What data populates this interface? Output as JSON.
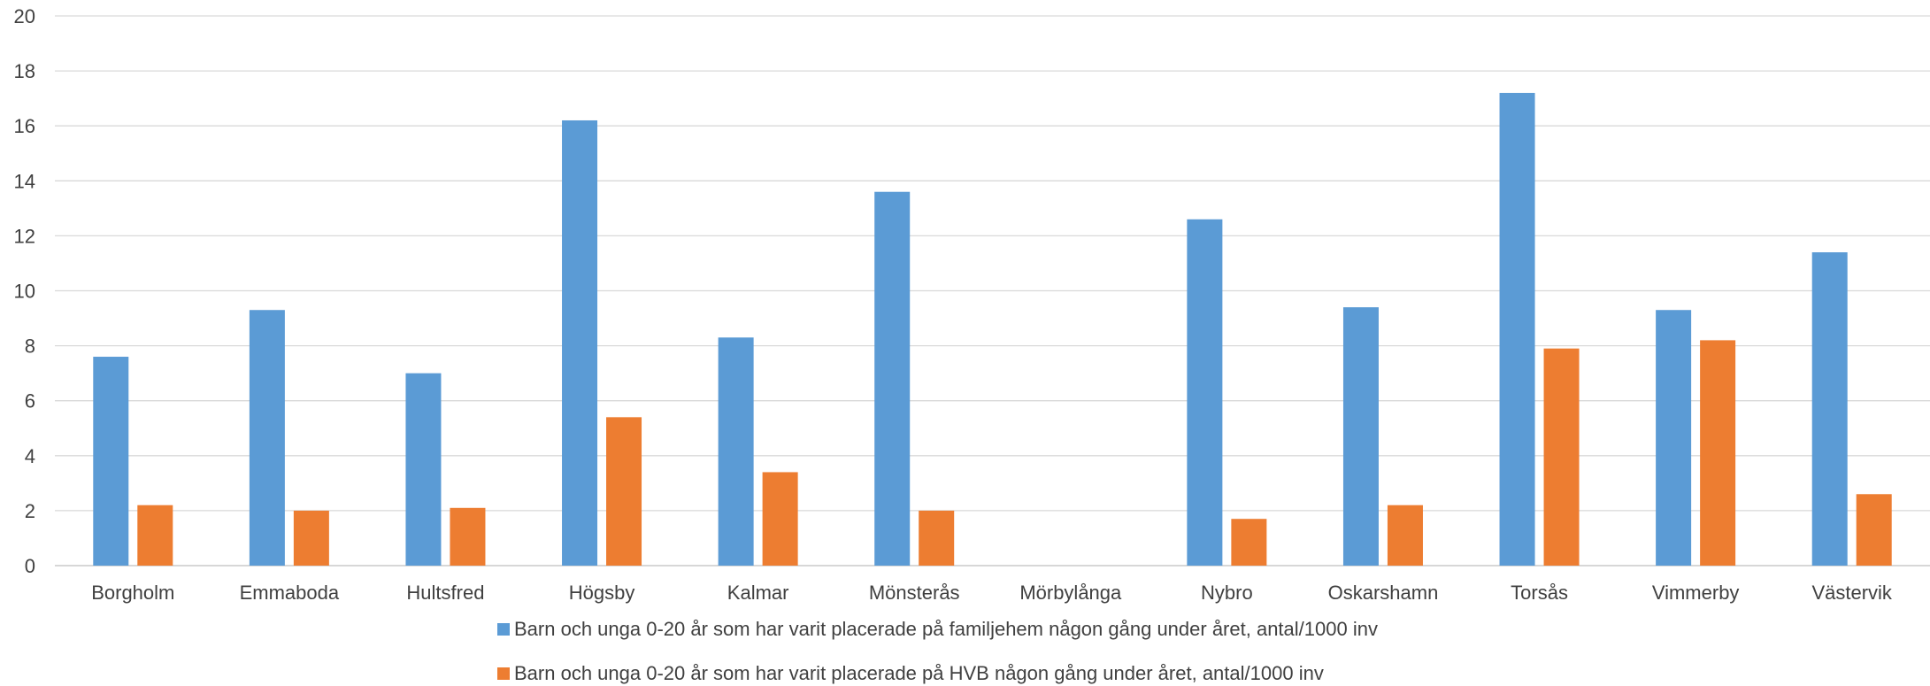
{
  "chart_data": {
    "type": "bar",
    "title": "",
    "xlabel": "",
    "ylabel": "",
    "ylim": [
      0,
      20
    ],
    "yticks": [
      0,
      2,
      4,
      6,
      8,
      10,
      12,
      14,
      16,
      18,
      20
    ],
    "grid": true,
    "legend_position": "bottom",
    "categories": [
      "Borgholm",
      "Emmaboda",
      "Hultsfred",
      "Högsby",
      "Kalmar",
      "Mönsterås",
      "Mörbylånga",
      "Nybro",
      "Oskarshamn",
      "Torsås",
      "Vimmerby",
      "Västervik"
    ],
    "series": [
      {
        "name": "Barn och unga 0-20 år som har varit placerade på familjehem någon gång under året, antal/1000 inv",
        "color": "#5B9BD5",
        "values": [
          7.6,
          9.3,
          7.0,
          16.2,
          8.3,
          13.6,
          null,
          12.6,
          9.4,
          17.2,
          9.3,
          11.4
        ]
      },
      {
        "name": "Barn och unga 0-20 år som har varit placerade på HVB någon gång under året, antal/1000 inv",
        "color": "#ED7D31",
        "values": [
          2.2,
          2.0,
          2.1,
          5.4,
          3.4,
          2.0,
          null,
          1.7,
          2.2,
          7.9,
          8.2,
          2.6
        ]
      }
    ]
  }
}
